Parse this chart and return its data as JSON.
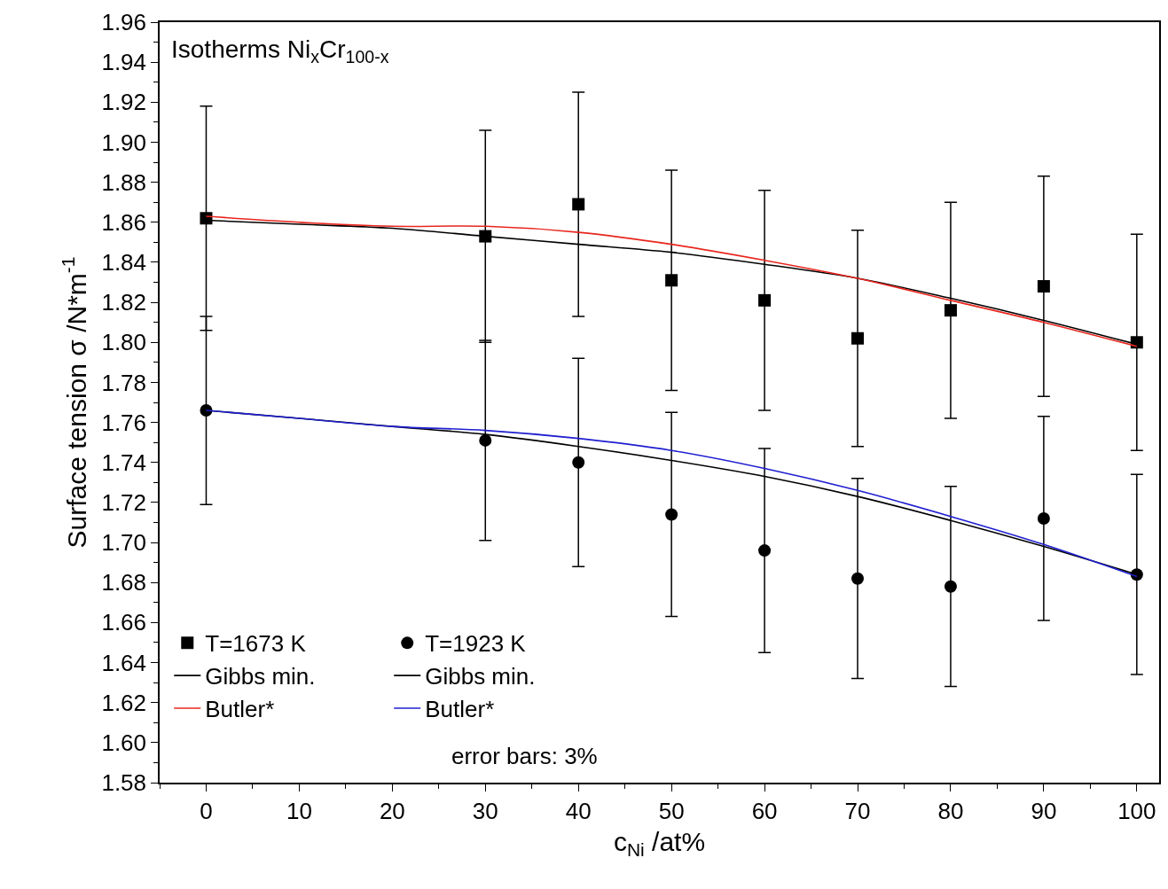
{
  "chart_data": {
    "type": "scatter",
    "annotations": [
      "Isotherms Ni$_{x}$Cr$_{100-x}$",
      "error bars: 3%"
    ],
    "xlabel": "c$_{Ni}$ /at%",
    "ylabel": "Surface tension σ /N*m$^{-1}$",
    "xlim": [
      -5,
      102.4
    ],
    "ylim": [
      1.58,
      1.96
    ],
    "xticks": [
      0,
      10,
      20,
      30,
      40,
      50,
      60,
      70,
      80,
      90,
      100
    ],
    "yticks": [
      {
        "value": 1.58,
        "label": "1.58"
      },
      {
        "value": 1.6,
        "label": "1.60"
      },
      {
        "value": 1.62,
        "label": "1.62"
      },
      {
        "value": 1.64,
        "label": "1.64"
      },
      {
        "value": 1.66,
        "label": "1.66"
      },
      {
        "value": 1.68,
        "label": "1.68"
      },
      {
        "value": 1.7,
        "label": "1.70"
      },
      {
        "value": 1.72,
        "label": "1.72"
      },
      {
        "value": 1.74,
        "label": "1.74"
      },
      {
        "value": 1.76,
        "label": "1.76"
      },
      {
        "value": 1.78,
        "label": "1.78"
      },
      {
        "value": 1.8,
        "label": "1.80"
      },
      {
        "value": 1.82,
        "label": "1.82"
      },
      {
        "value": 1.84,
        "label": "1.84"
      },
      {
        "value": 1.86,
        "label": "1.86"
      },
      {
        "value": 1.88,
        "label": "1.88"
      },
      {
        "value": 1.9,
        "label": "1.90"
      },
      {
        "value": 1.92,
        "label": "1.92"
      },
      {
        "value": 1.94,
        "label": "1.94"
      },
      {
        "value": 1.96,
        "label": "1.96"
      }
    ],
    "grid": false,
    "legend": "bottom left",
    "series": [
      {
        "name": "T=1673 K",
        "marker": "square",
        "color": "#000000",
        "x": [
          0,
          30,
          40,
          50,
          60,
          70,
          80,
          90,
          100
        ],
        "values": [
          1.862,
          1.853,
          1.869,
          1.831,
          1.821,
          1.802,
          1.816,
          1.828,
          1.8
        ],
        "errors": [
          0.056,
          0.053,
          0.056,
          0.055,
          0.055,
          0.054,
          0.054,
          0.055,
          0.054
        ]
      },
      {
        "name": "Gibbs min.",
        "type": "line",
        "marker": "none",
        "color": "#000000",
        "x": [
          0,
          10,
          20,
          30,
          40,
          50,
          60,
          70,
          80,
          90,
          100
        ],
        "values": [
          1.861,
          1.859,
          1.857,
          1.853,
          1.849,
          1.845,
          1.839,
          1.832,
          1.822,
          1.811,
          1.799
        ]
      },
      {
        "name": "Butler*",
        "type": "line",
        "marker": "none",
        "color": "#e8261e",
        "x": [
          0,
          10,
          20,
          30,
          40,
          50,
          60,
          70,
          80,
          90,
          100
        ],
        "values": [
          1.863,
          1.86,
          1.858,
          1.858,
          1.855,
          1.849,
          1.841,
          1.832,
          1.821,
          1.81,
          1.798
        ]
      },
      {
        "name": "T=1923 K",
        "marker": "circle",
        "color": "#000000",
        "x": [
          0,
          30,
          40,
          50,
          60,
          70,
          80,
          90,
          100
        ],
        "values": [
          1.766,
          1.751,
          1.74,
          1.714,
          1.696,
          1.682,
          1.678,
          1.712,
          1.684
        ],
        "errors": [
          0.047,
          0.05,
          0.052,
          0.051,
          0.051,
          0.05,
          0.05,
          0.051,
          0.05
        ]
      },
      {
        "name": "Gibbs min.",
        "type": "line",
        "marker": "none",
        "color": "#000000",
        "x": [
          0,
          10,
          20,
          30,
          40,
          50,
          60,
          70,
          80,
          90,
          100
        ],
        "values": [
          1.766,
          1.762,
          1.758,
          1.754,
          1.748,
          1.741,
          1.733,
          1.723,
          1.711,
          1.698,
          1.684
        ]
      },
      {
        "name": "Butler*",
        "type": "line",
        "marker": "none",
        "color": "#1f1fd0",
        "x": [
          0,
          10,
          20,
          30,
          40,
          50,
          60,
          70,
          80,
          90,
          100
        ],
        "values": [
          1.766,
          1.762,
          1.758,
          1.756,
          1.752,
          1.746,
          1.737,
          1.726,
          1.713,
          1.699,
          1.683
        ]
      }
    ]
  }
}
